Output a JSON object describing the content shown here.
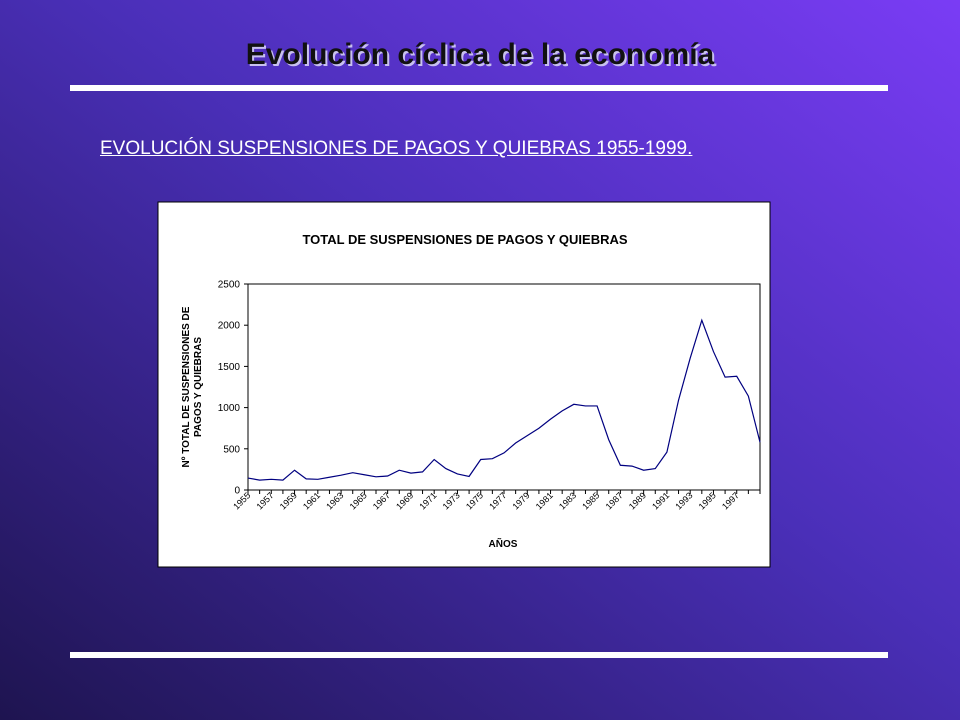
{
  "slide": {
    "title": "Evolución cíclica de la economía",
    "subtitle": "EVOLUCIÓN SUSPENSIONES DE PAGOS Y QUIEBRAS 1955-1999."
  },
  "chart_data": {
    "type": "line",
    "title": "TOTAL DE SUSPENSIONES DE PAGOS Y QUIEBRAS",
    "xlabel": "AÑOS",
    "ylabel": [
      "Nº TOTAL DE SUSPENSIONES DE",
      "PAGOS Y QUIEBRAS"
    ],
    "categories": [
      "1955",
      null,
      "1957",
      null,
      "1959",
      null,
      "1961",
      null,
      "1963",
      null,
      "1965",
      null,
      "1967",
      null,
      "1969",
      null,
      "1971",
      null,
      "1973",
      null,
      "1975",
      null,
      "1977",
      null,
      "1979",
      null,
      "1981",
      null,
      "1983",
      null,
      "1985",
      null,
      "1987",
      null,
      "1989",
      null,
      "1991",
      null,
      "1993",
      null,
      "1995",
      null,
      "1997",
      null,
      null
    ],
    "values": [
      145,
      120,
      130,
      120,
      240,
      135,
      130,
      155,
      180,
      210,
      185,
      160,
      170,
      240,
      205,
      220,
      370,
      260,
      195,
      165,
      370,
      380,
      450,
      570,
      660,
      750,
      860,
      960,
      1040,
      1020,
      1020,
      610,
      300,
      290,
      240,
      260,
      460,
      1090,
      1600,
      2060,
      1680,
      1370,
      1380,
      1140,
      580
    ],
    "color": "#000080",
    "ylim": [
      0,
      2500
    ],
    "yticks": [
      0,
      500,
      1000,
      1500,
      2000,
      2500
    ],
    "grid": false
  }
}
